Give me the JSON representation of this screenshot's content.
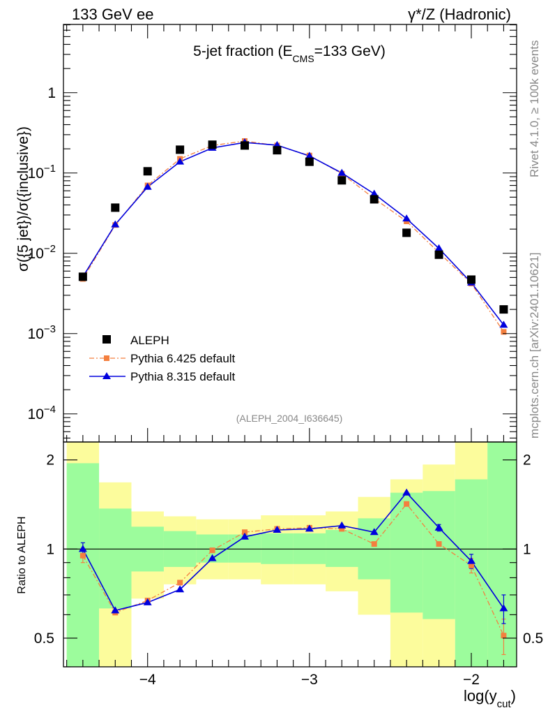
{
  "header": {
    "left": "133 GeV ee",
    "right": "γ*/Z (Hadronic)"
  },
  "side": {
    "rivet": "Rivet 4.1.0, ≥ 100k events",
    "mcplots": "mcplots.cern.ch [arXiv:2401.10621]"
  },
  "main_plot": {
    "title_main": "5-jet fraction (E",
    "title_sub": "CMS",
    "title_end": "=133 GeV)",
    "ylabel": "σ({5 jet})/σ({inclusive})",
    "analysis_id": "(ALEPH_2004_I636645)",
    "ytick_labels": [
      {
        "base": "10",
        "exp": "−4",
        "log": -4
      },
      {
        "base": "10",
        "exp": "−3",
        "log": -3
      },
      {
        "base": "10",
        "exp": "−2",
        "log": -2
      },
      {
        "base": "10",
        "exp": "−1",
        "log": -1
      },
      {
        "base": "1",
        "exp": "",
        "log": 0
      }
    ]
  },
  "ratio_plot": {
    "ylabel": "Ratio to ALEPH",
    "ytick_labels": [
      "0.5",
      "1",
      "2"
    ]
  },
  "xaxis": {
    "label_main": "log(y",
    "label_sub": "cut",
    "label_end": ")",
    "tick_labels": [
      "−4",
      "−3",
      "−2"
    ]
  },
  "legend": {
    "entries": [
      "ALEPH",
      "Pythia 6.425 default",
      "Pythia 8.315 default"
    ]
  },
  "colors": {
    "pythia6": "#f47f3f",
    "pythia8": "#0000dd",
    "band_green": "#9cfc9c",
    "band_yellow": "#fcfc9c",
    "data": "#000000"
  },
  "chart_data": {
    "type": "line",
    "title": "5-jet fraction (E_CMS=133 GeV)",
    "xlabel": "log(y_cut)",
    "ylabel": "σ({5 jet})/σ({inclusive})",
    "x": [
      -4.4,
      -4.2,
      -4.0,
      -3.8,
      -3.6,
      -3.4,
      -3.2,
      -3.0,
      -2.8,
      -2.6,
      -2.4,
      -2.2,
      -2.0,
      -1.8
    ],
    "xlim": [
      -4.52,
      -1.72
    ],
    "ylim_log10": [
      -4.35,
      0.85
    ],
    "series": [
      {
        "name": "ALEPH",
        "values": [
          0.0051,
          0.037,
          0.105,
          0.195,
          0.225,
          0.22,
          0.192,
          0.138,
          0.081,
          0.047,
          0.018,
          0.0096,
          0.0047,
          0.002
        ]
      },
      {
        "name": "Pythia 6.425 default",
        "values": [
          0.0048,
          0.0225,
          0.07,
          0.15,
          0.22,
          0.25,
          0.22,
          0.165,
          0.098,
          0.048,
          0.025,
          0.0102,
          0.0042,
          0.00105
        ]
      },
      {
        "name": "Pythia 8.315 default",
        "values": [
          0.0051,
          0.0228,
          0.067,
          0.138,
          0.205,
          0.24,
          0.222,
          0.163,
          0.1,
          0.055,
          0.027,
          0.0115,
          0.0043,
          0.00128
        ]
      }
    ],
    "ratio": {
      "ylabel": "Ratio to ALEPH",
      "ylim": [
        0.4,
        2.3
      ],
      "series": [
        {
          "name": "Pythia 6.425 default",
          "values": [
            0.95,
            0.61,
            0.67,
            0.77,
            0.99,
            1.14,
            1.17,
            1.18,
            1.17,
            1.04,
            1.42,
            1.04,
            0.88,
            0.51
          ],
          "errors": [
            0.05,
            0.0,
            0.0,
            0.0,
            0.0,
            0.0,
            0.0,
            0.0,
            0.0,
            0.0,
            0.0,
            0.0,
            0.05,
            0.07
          ]
        },
        {
          "name": "Pythia 8.315 default",
          "values": [
            1.0,
            0.62,
            0.66,
            0.73,
            0.93,
            1.1,
            1.16,
            1.17,
            1.2,
            1.14,
            1.55,
            1.18,
            0.91,
            0.63
          ],
          "errors": [
            0.05,
            0.0,
            0.0,
            0.0,
            0.0,
            0.0,
            0.0,
            0.0,
            0.0,
            0.0,
            0.0,
            0.03,
            0.05,
            0.07
          ]
        }
      ],
      "band_bins": [
        {
          "x0": -4.5,
          "x1": -4.3,
          "green_lo": 0.4,
          "green_hi": 1.95,
          "yellow_lo": 0.4,
          "yellow_hi": 2.3
        },
        {
          "x0": -4.3,
          "x1": -4.1,
          "green_lo": 0.63,
          "green_hi": 1.37,
          "yellow_lo": 0.4,
          "yellow_hi": 1.68
        },
        {
          "x0": -4.1,
          "x1": -3.9,
          "green_lo": 0.84,
          "green_hi": 1.19,
          "yellow_lo": 0.68,
          "yellow_hi": 1.34
        },
        {
          "x0": -3.9,
          "x1": -3.7,
          "green_lo": 0.87,
          "green_hi": 1.15,
          "yellow_lo": 0.76,
          "yellow_hi": 1.29
        },
        {
          "x0": -3.7,
          "x1": -3.5,
          "green_lo": 0.9,
          "green_hi": 1.12,
          "yellow_lo": 0.79,
          "yellow_hi": 1.26
        },
        {
          "x0": -3.5,
          "x1": -3.3,
          "green_lo": 0.9,
          "green_hi": 1.12,
          "yellow_lo": 0.79,
          "yellow_hi": 1.26
        },
        {
          "x0": -3.3,
          "x1": -3.1,
          "green_lo": 0.89,
          "green_hi": 1.13,
          "yellow_lo": 0.76,
          "yellow_hi": 1.3
        },
        {
          "x0": -3.1,
          "x1": -2.9,
          "green_lo": 0.89,
          "green_hi": 1.13,
          "yellow_lo": 0.76,
          "yellow_hi": 1.3
        },
        {
          "x0": -2.9,
          "x1": -2.7,
          "green_lo": 0.87,
          "green_hi": 1.16,
          "yellow_lo": 0.72,
          "yellow_hi": 1.34
        },
        {
          "x0": -2.7,
          "x1": -2.5,
          "green_lo": 0.79,
          "green_hi": 1.27,
          "yellow_lo": 0.6,
          "yellow_hi": 1.5
        },
        {
          "x0": -2.5,
          "x1": -2.3,
          "green_lo": 0.61,
          "green_hi": 1.55,
          "yellow_lo": 0.4,
          "yellow_hi": 1.72
        },
        {
          "x0": -2.3,
          "x1": -2.1,
          "green_lo": 0.58,
          "green_hi": 1.57,
          "yellow_lo": 0.4,
          "yellow_hi": 1.93
        },
        {
          "x0": -2.1,
          "x1": -1.9,
          "green_lo": 0.4,
          "green_hi": 1.72,
          "yellow_lo": 0.4,
          "yellow_hi": 2.3
        },
        {
          "x0": -1.9,
          "x1": -1.7,
          "green_lo": 0.4,
          "green_hi": 2.3,
          "yellow_lo": 0.4,
          "yellow_hi": 2.3
        }
      ]
    }
  }
}
